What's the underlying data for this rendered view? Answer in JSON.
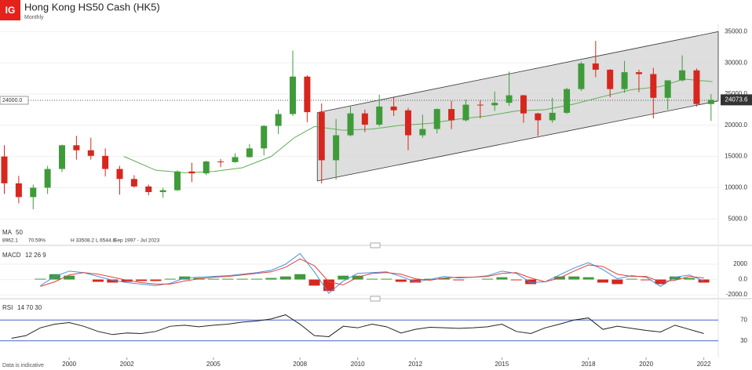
{
  "header": {
    "logo": "IG",
    "title": "Hong Kong HS50 Cash (HK5)",
    "subtitle": "Monthly",
    "footer": "Data is indicative"
  },
  "chart_data": [
    {
      "type": "candlestick",
      "x": [
        1997.75,
        1998.25,
        1998.75,
        1999.25,
        1999.75,
        2000.25,
        2000.75,
        2001.25,
        2001.75,
        2002.25,
        2002.75,
        2003.25,
        2003.75,
        2004.25,
        2004.75,
        2005.25,
        2005.75,
        2006.25,
        2006.75,
        2007.25,
        2007.75,
        2008.25,
        2008.75,
        2009.25,
        2009.75,
        2010.25,
        2010.75,
        2011.25,
        2011.75,
        2012.25,
        2012.75,
        2013.25,
        2013.75,
        2014.25,
        2014.75,
        2015.25,
        2015.75,
        2016.25,
        2016.75,
        2017.25,
        2017.75,
        2018.25,
        2018.75,
        2019.25,
        2019.75,
        2020.25,
        2020.75,
        2021.25,
        2021.75,
        2022.25
      ],
      "open": [
        15000,
        10700,
        8500,
        10000,
        13000,
        16800,
        16000,
        15100,
        13000,
        11400,
        10200,
        9300,
        9600,
        12600,
        12300,
        14200,
        14100,
        14900,
        16300,
        19900,
        21800,
        27800,
        22100,
        14400,
        18400,
        21900,
        20100,
        23000,
        22400,
        18400,
        19400,
        22600,
        20800,
        23300,
        23200,
        23600,
        24800,
        21900,
        20800,
        22000,
        25800,
        29900,
        28900,
        25800,
        28500,
        28200,
        24400,
        27200,
        28800,
        23400
      ],
      "high": [
        16800,
        11900,
        10500,
        13500,
        16900,
        18300,
        18000,
        16300,
        13500,
        12000,
        10500,
        10000,
        12800,
        14000,
        14300,
        14600,
        15500,
        17000,
        20000,
        22500,
        31958,
        28000,
        23500,
        21000,
        23000,
        22500,
        24900,
        24500,
        22800,
        21700,
        22700,
        23900,
        24100,
        24000,
        25400,
        28600,
        24900,
        22000,
        24400,
        26000,
        30200,
        33508.2,
        29000,
        30300,
        28900,
        29200,
        27000,
        31200,
        29100,
        25000
      ],
      "low": [
        9000,
        7500,
        6544.8,
        9000,
        12500,
        14500,
        14500,
        11800,
        8900,
        10000,
        8800,
        8400,
        9500,
        10900,
        12000,
        13300,
        14000,
        14800,
        15200,
        18600,
        21500,
        20500,
        10676,
        11300,
        18200,
        18900,
        19800,
        21500,
        16000,
        18000,
        18700,
        19400,
        20600,
        21100,
        22300,
        23100,
        20400,
        18300,
        20400,
        21800,
        25500,
        27700,
        24500,
        25200,
        25300,
        21100,
        22500,
        27000,
        23000,
        20700
      ],
      "close": [
        10700,
        8500,
        10000,
        13000,
        16800,
        16000,
        15100,
        13000,
        11400,
        10200,
        9300,
        9600,
        12600,
        12300,
        14200,
        14100,
        14900,
        16300,
        19900,
        21800,
        27800,
        22100,
        14400,
        18400,
        21900,
        20100,
        23000,
        22400,
        18400,
        19400,
        22600,
        20800,
        23300,
        23200,
        23600,
        24800,
        21900,
        20800,
        22000,
        25800,
        29900,
        28900,
        25800,
        28500,
        28200,
        24400,
        27200,
        28800,
        23400,
        24073.6
      ],
      "up_color": "#3f9b3a",
      "down_color": "#d7261e",
      "xlim": [
        1997.6,
        2022.5
      ],
      "xticks": [
        2000,
        2002,
        2005,
        2008,
        2010,
        2012,
        2015,
        2018,
        2020,
        2022
      ],
      "ylim": [
        2900,
        36300
      ],
      "yticks": [
        {
          "value": 5000,
          "label": "5000.0"
        },
        {
          "value": 10000,
          "label": "10000.0"
        },
        {
          "value": 15000,
          "label": "15000.0"
        },
        {
          "value": 20000,
          "label": "20000.0"
        },
        {
          "value": 25000,
          "label": "25000.0"
        },
        {
          "value": 30000,
          "label": "30000.0"
        },
        {
          "value": 35000,
          "label": "35000.0"
        }
      ],
      "level": {
        "value": 24000,
        "label": "24000.0"
      },
      "channel": {
        "x": [
          2008.6,
          2022.5
        ],
        "upper": [
          22030,
          35000
        ],
        "lower": [
          11070,
          23900
        ],
        "color": "#d6d6d6"
      },
      "ma": {
        "name": "MA",
        "period": 50,
        "color": "#5fae56",
        "x": [
          2001.9,
          2003,
          2004,
          2005,
          2006,
          2007,
          2007.8,
          2008.5,
          2009.5,
          2010.5,
          2011.5,
          2012.5,
          2013.5,
          2014.5,
          2015.5,
          2016.5,
          2017.5,
          2018.5,
          2019.5,
          2020.5,
          2021.3,
          2022.3
        ],
        "values": [
          15000,
          12800,
          12400,
          12600,
          13200,
          15000,
          18000,
          19800,
          19200,
          19400,
          20000,
          20300,
          21000,
          21500,
          22300,
          22500,
          23400,
          24600,
          25700,
          26200,
          27400,
          27000
        ]
      },
      "stats": [
        "8962.1",
        "70.59%",
        "H 33508.2",
        "L 6544.8",
        "Sep 1997 - Jul 2023"
      ]
    },
    {
      "type": "macd",
      "label": "MACD",
      "params": "12 26 9",
      "x": [
        1999,
        1999.5,
        2000,
        2000.5,
        2001,
        2001.5,
        2002,
        2002.5,
        2003,
        2003.5,
        2004,
        2004.5,
        2005,
        2005.5,
        2006,
        2006.5,
        2007,
        2007.5,
        2008,
        2008.5,
        2009,
        2009.5,
        2010,
        2010.5,
        2011,
        2011.5,
        2012,
        2012.5,
        2013,
        2013.5,
        2014,
        2014.5,
        2015,
        2015.5,
        2016,
        2016.5,
        2017,
        2017.5,
        2018,
        2018.5,
        2019,
        2019.5,
        2020,
        2020.5,
        2021,
        2021.5,
        2022
      ],
      "macd": {
        "color": "#4a8fdc",
        "values": [
          -800,
          400,
          1100,
          900,
          400,
          -100,
          -400,
          -600,
          -800,
          -500,
          200,
          300,
          400,
          500,
          700,
          900,
          1200,
          2000,
          3400,
          1000,
          -1800,
          -200,
          800,
          900,
          1000,
          400,
          -300,
          0,
          400,
          200,
          300,
          500,
          1100,
          800,
          -400,
          -300,
          600,
          1500,
          2200,
          1300,
          100,
          500,
          300,
          -900,
          300,
          600,
          -200
        ]
      },
      "signal": {
        "color": "#e0403a",
        "values": [
          -900,
          -300,
          600,
          900,
          700,
          300,
          -100,
          -400,
          -600,
          -600,
          -200,
          100,
          300,
          400,
          600,
          800,
          1000,
          1600,
          2700,
          1800,
          -300,
          -700,
          300,
          800,
          900,
          700,
          100,
          -100,
          200,
          300,
          300,
          400,
          800,
          900,
          200,
          -300,
          200,
          1100,
          1900,
          1700,
          700,
          400,
          400,
          -300,
          -100,
          400,
          200
        ]
      },
      "histogram": {
        "up_color": "#3f9b3a",
        "down_color": "#d7261e",
        "values": [
          100,
          700,
          500,
          0,
          -300,
          -400,
          -300,
          -200,
          -200,
          100,
          400,
          200,
          100,
          100,
          100,
          100,
          200,
          400,
          700,
          -800,
          -1500,
          500,
          500,
          100,
          100,
          -300,
          -400,
          100,
          200,
          -100,
          0,
          100,
          300,
          -100,
          -600,
          0,
          400,
          400,
          300,
          -400,
          -600,
          100,
          -100,
          -600,
          400,
          200,
          -400
        ]
      },
      "ylim": [
        -2400,
        3950
      ],
      "yticks": [
        {
          "value": -2000,
          "label": "-2000.0"
        },
        {
          "value": 0,
          "label": "0.0"
        },
        2000
      ]
    },
    {
      "type": "rsi",
      "label": "RSI",
      "params": "14 70 30",
      "color": "#222222",
      "level_color": "#4a62c8",
      "x": [
        1998,
        1998.5,
        1999,
        1999.5,
        2000,
        2000.5,
        2001,
        2001.5,
        2002,
        2002.5,
        2003,
        2003.5,
        2004,
        2004.5,
        2005,
        2005.5,
        2006,
        2006.5,
        2007,
        2007.5,
        2008,
        2008.5,
        2009,
        2009.5,
        2010,
        2010.5,
        2011,
        2011.5,
        2012,
        2012.5,
        2013,
        2013.5,
        2014,
        2014.5,
        2015,
        2015.5,
        2016,
        2016.5,
        2017,
        2017.5,
        2018,
        2018.5,
        2019,
        2019.5,
        2020,
        2020.5,
        2021,
        2021.5,
        2022
      ],
      "values": [
        35,
        40,
        55,
        62,
        65,
        58,
        48,
        42,
        45,
        44,
        48,
        58,
        60,
        57,
        60,
        62,
        66,
        68,
        72,
        80,
        62,
        40,
        38,
        58,
        55,
        62,
        57,
        45,
        52,
        56,
        55,
        54,
        55,
        57,
        62,
        48,
        44,
        55,
        62,
        70,
        74,
        52,
        58,
        54,
        50,
        47,
        60,
        52,
        44
      ],
      "ylim": [
        -2,
        105
      ],
      "yticks": [
        30,
        70
      ]
    }
  ]
}
